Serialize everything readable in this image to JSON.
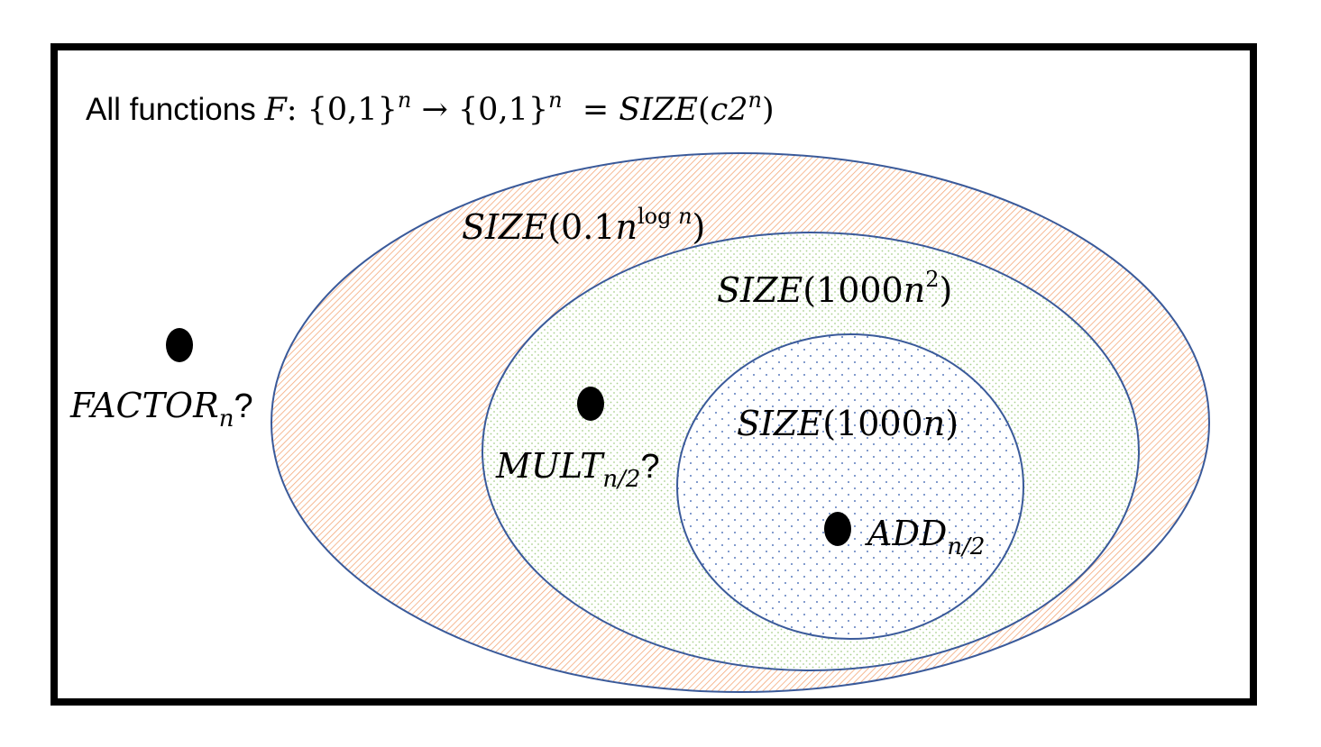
{
  "header": {
    "prefix": "All functions ",
    "var_F": "F",
    "colon_set": ": {0,1}",
    "exp_n1": "n",
    "arrow_set": " → {0,1}",
    "exp_n2": "n",
    "equals": "  = ",
    "size": "SIZE",
    "open": "(",
    "c2": "c2",
    "exp_n3": "n",
    "close": ")"
  },
  "sets": {
    "outer": {
      "size": "SIZE",
      "arg": "(0.1",
      "var": "n",
      "exponent": "log ",
      "exponent_var": "n",
      "close": ")",
      "pattern_color": "#f4a97a"
    },
    "middle": {
      "size": "SIZE",
      "arg": "(1000",
      "var": "n",
      "exponent": "2",
      "close": ")",
      "pattern_color": "#a9d18e"
    },
    "inner": {
      "size": "SIZE",
      "arg": "(1000",
      "var": "n",
      "close": ")",
      "pattern_color": "#5b7bbd"
    },
    "stroke_color": "#3a5a9a"
  },
  "points": {
    "factor": {
      "name": "FACTOR",
      "sub": "n",
      "suffix": "?"
    },
    "mult": {
      "name": "MULT",
      "sub": "n/2",
      "suffix": "?"
    },
    "add": {
      "name": "ADD",
      "sub": "n/2"
    }
  }
}
